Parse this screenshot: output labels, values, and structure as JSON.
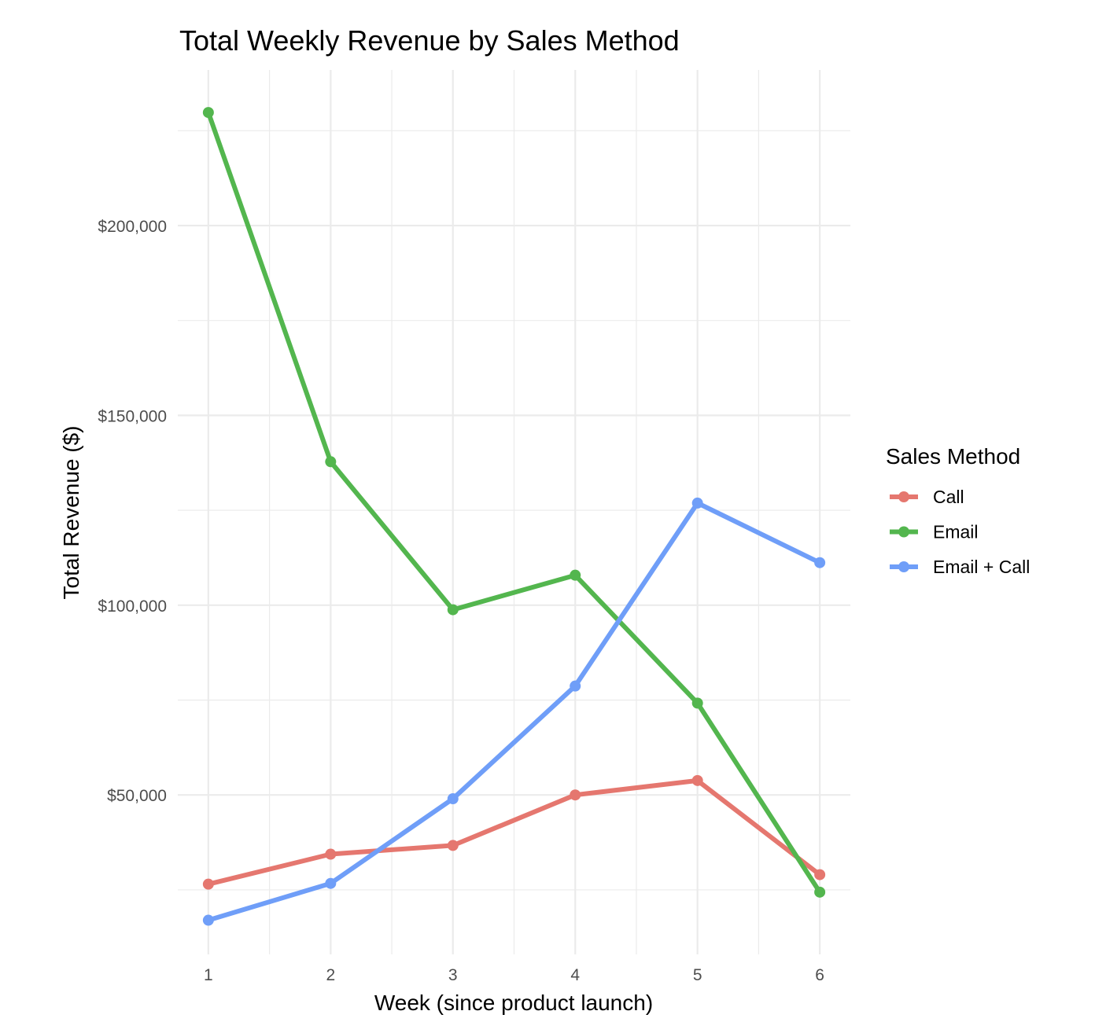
{
  "chart_data": {
    "type": "line",
    "title": "Total Weekly Revenue by Sales Method",
    "xlabel": "Week (since product launch)",
    "ylabel": "Total Revenue ($)",
    "x": [
      1,
      2,
      3,
      4,
      5,
      6
    ],
    "x_tick_labels": [
      "1",
      "2",
      "3",
      "4",
      "5",
      "6"
    ],
    "y_ticks": [
      50000,
      100000,
      150000,
      200000
    ],
    "y_tick_labels": [
      "$50,000",
      "$100,000",
      "$150,000",
      "$200,000"
    ],
    "xlim": [
      0.75,
      6.25
    ],
    "ylim": [
      8000,
      241000
    ],
    "grid": true,
    "legend": {
      "title": "Sales Method",
      "position": "right"
    },
    "series": [
      {
        "name": "Call",
        "color": "#e5776f",
        "values": [
          26500,
          34400,
          36700,
          50000,
          53800,
          29000
        ]
      },
      {
        "name": "Email",
        "color": "#53b64e",
        "values": [
          229800,
          137800,
          98800,
          107900,
          74200,
          24400
        ]
      },
      {
        "name": "Email + Call",
        "color": "#6f9ef8",
        "values": [
          17000,
          26700,
          49000,
          78700,
          126900,
          111200
        ]
      }
    ]
  }
}
